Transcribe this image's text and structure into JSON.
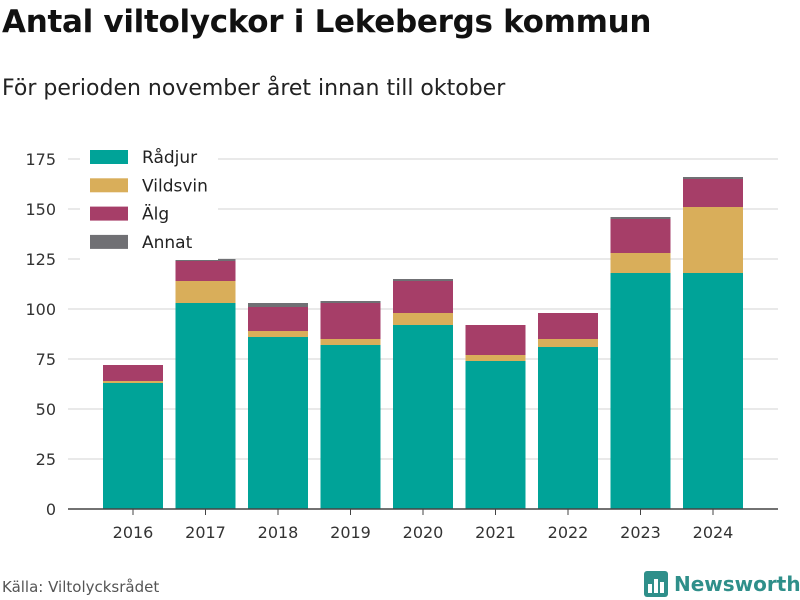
{
  "header": {
    "title": "Antal viltolyckor i Lekebergs kommun",
    "subtitle": "För perioden november året innan till oktober"
  },
  "footer": {
    "source": "Källa: Viltolycksrådet",
    "brand": "Newsworthy"
  },
  "colors": {
    "rådjur": "#00a398",
    "vildsvin": "#d9ae5a",
    "alg": "#a63e68",
    "annat": "#707074",
    "brand": "#2f8f8a"
  },
  "chart_data": {
    "type": "bar",
    "stacked": true,
    "categories": [
      "2016",
      "2017",
      "2018",
      "2019",
      "2020",
      "2021",
      "2022",
      "2023",
      "2024"
    ],
    "series": [
      {
        "name": "Rådjur",
        "color": "#00a398",
        "values": [
          63,
          103,
          86,
          82,
          92,
          74,
          81,
          118,
          118
        ]
      },
      {
        "name": "Vildsvin",
        "color": "#d9ae5a",
        "values": [
          1,
          11,
          3,
          3,
          6,
          3,
          4,
          10,
          33
        ]
      },
      {
        "name": "Älg",
        "color": "#a63e68",
        "values": [
          8,
          10,
          12,
          18,
          16,
          15,
          13,
          17,
          14
        ]
      },
      {
        "name": "Annat",
        "color": "#707074",
        "values": [
          0,
          1,
          2,
          1,
          1,
          0,
          0,
          1,
          1
        ]
      }
    ],
    "yticks": [
      0,
      25,
      50,
      75,
      100,
      125,
      150,
      175
    ],
    "ylim": [
      0,
      175
    ],
    "grid": true,
    "legend_position": "top-left"
  }
}
